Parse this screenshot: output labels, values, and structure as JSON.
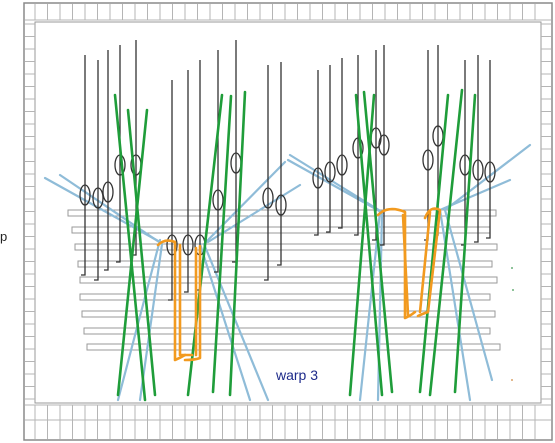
{
  "labels": {
    "side_label": "p",
    "warp_label": "warp 3"
  },
  "colors": {
    "frame_border": "#8a8a8a",
    "heddle": "#333333",
    "warp_green": "#1f9d3a",
    "warp_blue": "#8fbcd8",
    "weft_orange": "#f29a1f",
    "warp_label": "#1d2a8a"
  }
}
